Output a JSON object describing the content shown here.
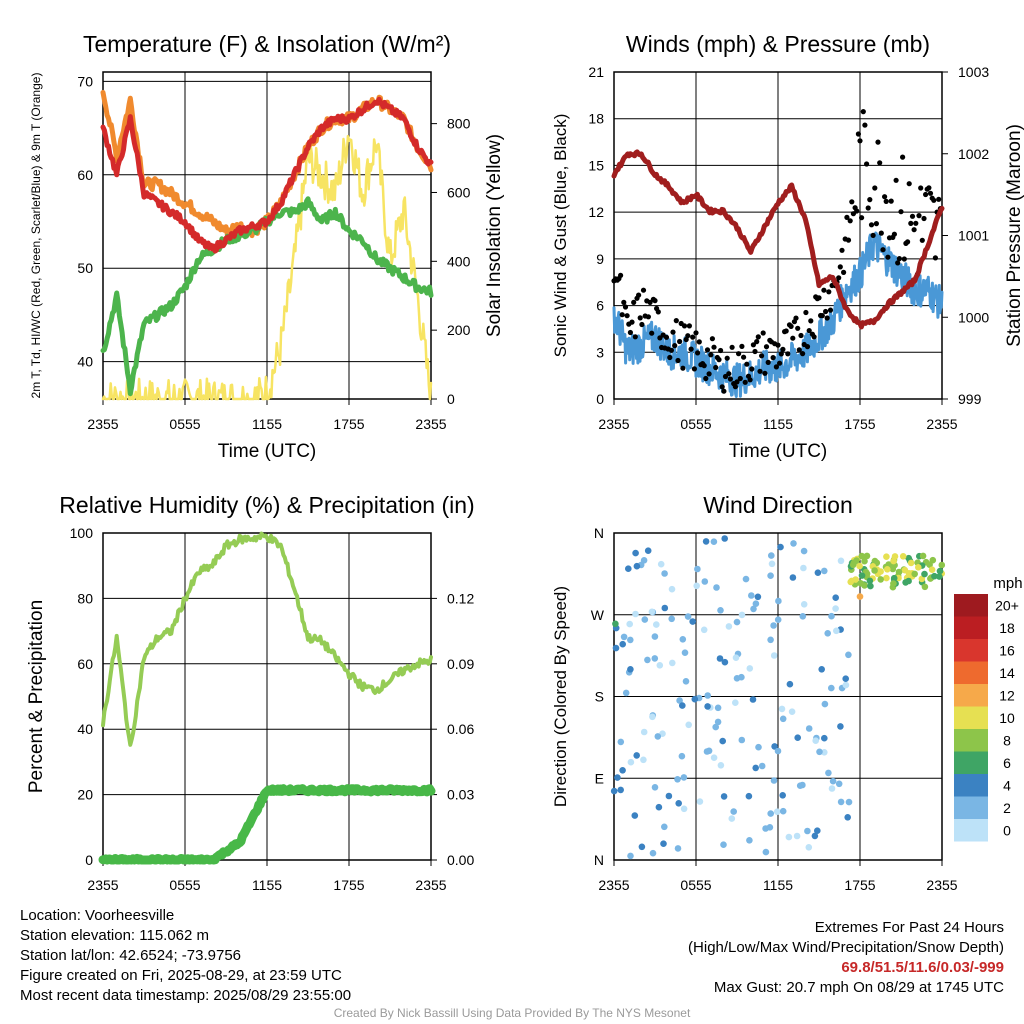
{
  "colors": {
    "red": "#d42a2a",
    "green": "#4cb44c",
    "orange": "#f08a2e",
    "yellow": "#f7e463",
    "maroon": "#a01e1e",
    "blue": "#4a98d6",
    "black": "#000000",
    "rh": "#95cc55",
    "precip": "#48b848",
    "extremes": "#c62828",
    "credit": "#9a9a9a"
  },
  "x_ticks": [
    "2355",
    "0555",
    "1155",
    "1755",
    "2355"
  ],
  "chart_data": [
    {
      "type": "line",
      "title": "Temperature (F) & Insolation (W/m²)",
      "xlabel": "Time (UTC)",
      "ylabel": "2m T, Td, HI/WC (Red, Green, Scarlet/Blue) & 9m T (Orange)",
      "ylabel_right": "Solar Insolation (Yellow)",
      "ylim": [
        36,
        71
      ],
      "yticks": [
        40,
        50,
        60,
        70
      ],
      "ylim_right": [
        0,
        950
      ],
      "yticks_right": [
        0,
        200,
        400,
        600,
        800
      ],
      "x_hours": [
        0,
        1,
        2,
        3,
        4,
        5,
        6,
        7,
        8,
        9,
        10,
        11,
        12,
        13,
        14,
        15,
        16,
        17,
        18,
        19,
        20,
        21,
        22,
        23,
        24
      ],
      "series": [
        {
          "name": "2m T",
          "color": "red",
          "axis": "left",
          "values": [
            65,
            60,
            66,
            58,
            57,
            56,
            55,
            53,
            52,
            53,
            54,
            54.5,
            55,
            57,
            60,
            63,
            65,
            66,
            66,
            67,
            68,
            67,
            66,
            63,
            61
          ]
        },
        {
          "name": "9m T",
          "color": "orange",
          "axis": "left",
          "values": [
            69,
            62,
            68,
            59,
            59,
            58,
            57,
            56,
            55,
            54,
            54.5,
            54,
            55,
            57,
            60,
            63,
            65,
            66,
            66,
            67,
            68,
            67,
            66,
            63,
            61
          ]
        },
        {
          "name": "Td",
          "color": "green",
          "axis": "left",
          "values": [
            41,
            47,
            37,
            44,
            45,
            46,
            48,
            51,
            52,
            53,
            53.5,
            54,
            55,
            56,
            56,
            57,
            55,
            56,
            54,
            53,
            51,
            50,
            49,
            48,
            47.5
          ]
        },
        {
          "name": "Solar Insolation",
          "color": "yellow",
          "axis": "right",
          "values": [
            0,
            0,
            0,
            0,
            0,
            0,
            0,
            0,
            0,
            0,
            0,
            0,
            20,
            150,
            400,
            700,
            650,
            600,
            780,
            600,
            750,
            400,
            550,
            300,
            0
          ]
        }
      ]
    },
    {
      "type": "line",
      "title": "Winds (mph) & Pressure (mb)",
      "xlabel": "Time (UTC)",
      "ylabel": "Sonic Wind & Gust (Blue, Black)",
      "ylabel_right": "Station Pressure (Maroon)",
      "ylim": [
        0,
        21
      ],
      "yticks": [
        0,
        3,
        6,
        9,
        12,
        15,
        18,
        21
      ],
      "ylim_right": [
        999,
        1003
      ],
      "yticks_right": [
        999,
        1000,
        1001,
        1002,
        1003
      ],
      "x_hours": [
        0,
        1,
        2,
        3,
        4,
        5,
        6,
        7,
        8,
        9,
        10,
        11,
        12,
        13,
        14,
        15,
        16,
        17,
        18,
        19,
        20,
        21,
        22,
        23,
        24
      ],
      "series": [
        {
          "name": "Wind",
          "color": "blue",
          "axis": "left",
          "values": [
            5.5,
            3,
            3.5,
            4,
            3,
            3,
            2.5,
            2,
            1.5,
            1.2,
            1.5,
            2,
            2,
            2.5,
            3,
            4,
            5,
            7,
            8,
            10,
            9,
            8,
            7,
            7,
            6
          ]
        },
        {
          "name": "Gust",
          "color": "black",
          "axis": "left",
          "values": [
            9,
            4,
            6,
            5,
            4,
            3.5,
            3,
            2.5,
            2,
            2,
            2.5,
            3,
            3,
            3.5,
            4.5,
            6,
            7,
            10,
            15,
            14,
            13,
            12,
            11,
            11,
            10
          ]
        },
        {
          "name": "Station Pressure",
          "color": "maroon",
          "axis": "right",
          "values": [
            1001.75,
            1002,
            1002,
            1001.75,
            1001.6,
            1001.4,
            1001.5,
            1001.3,
            1001.3,
            1001.1,
            1000.8,
            1001.1,
            1001.4,
            1001.6,
            1001.2,
            1000.4,
            1000.5,
            1000.1,
            999.9,
            999.95,
            1000.15,
            1000.3,
            1000.45,
            1000.9,
            1001.35
          ]
        }
      ]
    },
    {
      "type": "line",
      "title": "Relative Humidity (%) & Precipitation (in)",
      "xlabel": "",
      "ylabel": "Percent & Precipitation",
      "ylim": [
        0,
        100
      ],
      "yticks": [
        0,
        20,
        40,
        60,
        80,
        100
      ],
      "ylim_right": [
        0,
        0.15
      ],
      "yticks_right": [
        0.0,
        0.03,
        0.06,
        0.09,
        0.12
      ],
      "yticks_right_labels": [
        "0.00",
        "0.03",
        "0.06",
        "0.09",
        "0.12"
      ],
      "x_hours": [
        0,
        1,
        2,
        3,
        4,
        5,
        6,
        7,
        8,
        9,
        10,
        11,
        12,
        13,
        14,
        15,
        16,
        17,
        18,
        19,
        20,
        21,
        22,
        23,
        24
      ],
      "series": [
        {
          "name": "Relative Humidity",
          "color": "rh",
          "axis": "left",
          "values": [
            42,
            68,
            34,
            62,
            68,
            70,
            80,
            88,
            90,
            96,
            98,
            98.5,
            99,
            96,
            83,
            68,
            67,
            62,
            57,
            53,
            52,
            55,
            58,
            60,
            61
          ]
        },
        {
          "name": "Precipitation",
          "color": "precip",
          "axis": "right",
          "values": [
            0,
            0,
            0,
            0,
            0,
            0,
            0,
            0,
            0,
            0.004,
            0.008,
            0.02,
            0.032,
            0.032,
            0.032,
            0.032,
            0.032,
            0.032,
            0.032,
            0.032,
            0.032,
            0.032,
            0.032,
            0.032,
            0.032
          ]
        }
      ]
    },
    {
      "type": "scatter",
      "title": "Wind Direction",
      "xlabel": "",
      "ylabel": "Direction (Colored By Speed)",
      "ylim": [
        0,
        360
      ],
      "yticks": [
        0,
        90,
        180,
        270,
        360
      ],
      "ytick_labels": [
        "N",
        "E",
        "S",
        "W",
        "N"
      ],
      "legend": {
        "title": "mph",
        "labels": [
          "20+",
          "18",
          "16",
          "14",
          "12",
          "10",
          "8",
          "6",
          "4",
          "2",
          "0"
        ],
        "colors": [
          "#9e1a1f",
          "#bb1e22",
          "#d9362d",
          "#ee6a2e",
          "#f6a94a",
          "#e6e052",
          "#8dc54a",
          "#3fa565",
          "#3b82c2",
          "#7ab6e4",
          "#bde2f8"
        ]
      },
      "points_sample": [
        {
          "hour": 0.1,
          "dir": 260,
          "speed": 5
        },
        {
          "hour": 0.5,
          "dir": 130,
          "speed": 2
        },
        {
          "hour": 1.2,
          "dir": 210,
          "speed": 4
        },
        {
          "hour": 2.2,
          "dir": 330,
          "speed": 2
        },
        {
          "hour": 3.0,
          "dir": 80,
          "speed": 2
        },
        {
          "hour": 5.0,
          "dir": 170,
          "speed": 3
        },
        {
          "hour": 7.5,
          "dir": 300,
          "speed": 1
        },
        {
          "hour": 9.0,
          "dir": 200,
          "speed": 2
        },
        {
          "hour": 12.0,
          "dir": 120,
          "speed": 2
        },
        {
          "hour": 15.2,
          "dir": 210,
          "speed": 4
        },
        {
          "hour": 17.5,
          "dir": 325,
          "speed": 7
        },
        {
          "hour": 18.0,
          "dir": 290,
          "speed": 11
        },
        {
          "hour": 20.0,
          "dir": 320,
          "speed": 10
        },
        {
          "hour": 22.0,
          "dir": 315,
          "speed": 8
        },
        {
          "hour": 23.8,
          "dir": 312,
          "speed": 6
        }
      ]
    }
  ],
  "info": {
    "location": "Location: Voorheesville",
    "elevation": "Station elevation: 115.062 m",
    "latlon": "Station lat/lon: 42.6524; -73.9756",
    "created": "Figure created on Fri, 2025-08-29, at 23:59 UTC",
    "recent": "Most recent data timestamp: 2025/08/29 23:55:00"
  },
  "extremes": {
    "title": "Extremes For Past 24 Hours",
    "subtitle": "(High/Low/Max Wind/Precipitation/Snow Depth)",
    "values": "69.8/51.5/11.6/0.03/-999",
    "gust": "Max Gust: 20.7 mph On 08/29 at 1745 UTC"
  },
  "credit": "Created By Nick Bassill Using Data Provided By The NYS Mesonet"
}
